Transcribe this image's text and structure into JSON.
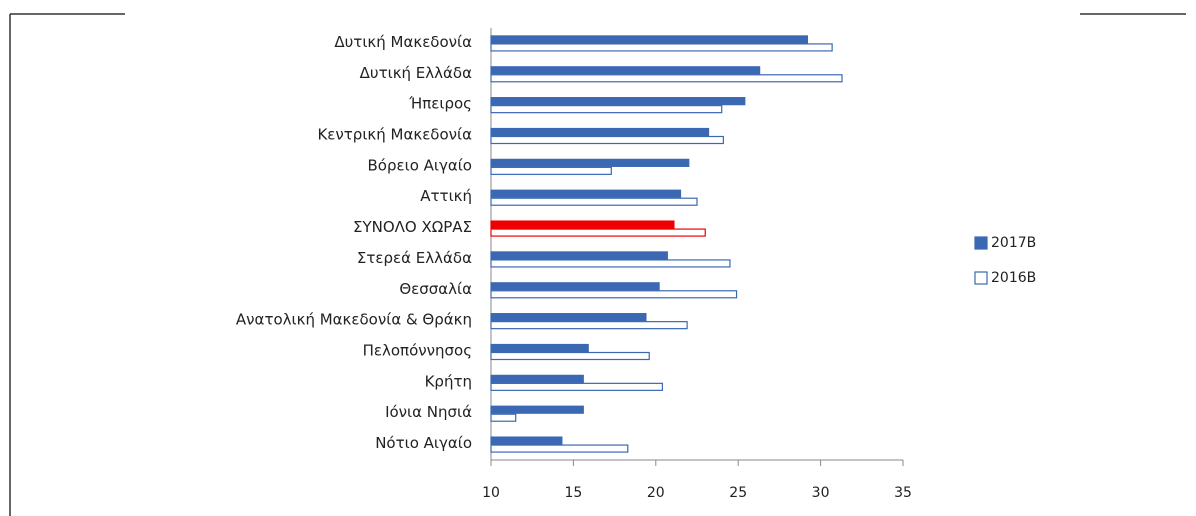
{
  "chart_data": {
    "type": "barh",
    "categories": [
      "Δυτική Μακεδονία",
      "Δυτική Ελλάδα",
      "Ήπειρος",
      "Κεντρική Μακεδονία",
      "Βόρειο Αιγαίο",
      "Αττική",
      "ΣΥΝΟΛΟ ΧΩΡΑΣ",
      "Στερεά Ελλάδα",
      "Θεσσαλία",
      "Ανατολική Μακεδονία & Θράκη",
      "Πελοπόννησος",
      "Κρήτη",
      "Ιόνια Νησιά",
      "Νότιο Αιγαίο"
    ],
    "series": [
      {
        "name": "2017B",
        "color": "#3b68b2",
        "hollow": false,
        "bar_colors": [
          "#3b68b2",
          "#3b68b2",
          "#3b68b2",
          "#3b68b2",
          "#3b68b2",
          "#3b68b2",
          "#ee0000",
          "#3b68b2",
          "#3b68b2",
          "#3b68b2",
          "#3b68b2",
          "#3b68b2",
          "#3b68b2",
          "#3b68b2"
        ],
        "values": [
          29.2,
          26.3,
          25.4,
          23.2,
          22.0,
          21.5,
          21.1,
          20.7,
          20.2,
          19.4,
          15.9,
          15.6,
          15.6,
          14.3
        ]
      },
      {
        "name": "2016B",
        "color": "#3b68b2",
        "hollow": true,
        "bar_colors": [
          "#3b68b2",
          "#3b68b2",
          "#3b68b2",
          "#3b68b2",
          "#3b68b2",
          "#3b68b2",
          "#ee0000",
          "#3b68b2",
          "#3b68b2",
          "#3b68b2",
          "#3b68b2",
          "#3b68b2",
          "#3b68b2",
          "#3b68b2"
        ],
        "values": [
          30.7,
          31.3,
          24.0,
          24.1,
          17.3,
          22.5,
          23.0,
          24.5,
          24.9,
          21.9,
          19.6,
          20.4,
          11.5,
          18.3
        ]
      }
    ],
    "xlim": [
      10,
      35
    ],
    "xticks": [
      10,
      15,
      20,
      25,
      30,
      35
    ],
    "grid": false,
    "legend": "right"
  }
}
